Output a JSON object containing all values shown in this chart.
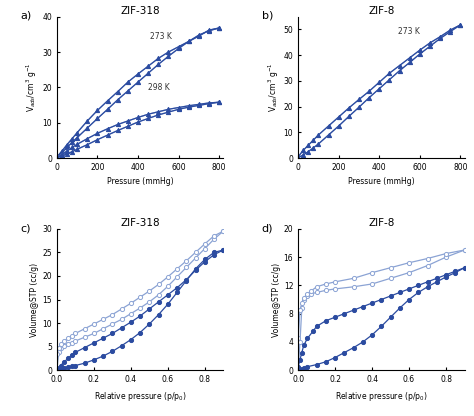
{
  "panel_a": {
    "title": "ZIF-318",
    "xlabel": "Pressure (mmHg)",
    "ylabel": "V$_{ads}$/cm$^3$ g$^{-1}$",
    "xlim": [
      0,
      820
    ],
    "ylim": [
      0,
      40
    ],
    "label_273": "273 K",
    "label_298": "298 K",
    "color_dark": "#2b4ba0",
    "color_light": "#8ba3d4",
    "273_adsorb_x": [
      0,
      25,
      50,
      75,
      100,
      150,
      200,
      250,
      300,
      350,
      400,
      450,
      500,
      550,
      600,
      650,
      700,
      750,
      800
    ],
    "273_adsorb_y": [
      0.3,
      1.5,
      3.0,
      4.5,
      5.8,
      8.5,
      11.2,
      13.8,
      16.5,
      19.0,
      21.5,
      24.0,
      26.5,
      28.8,
      31.0,
      33.0,
      34.8,
      36.0,
      36.8
    ],
    "273_desorb_x": [
      800,
      750,
      700,
      650,
      600,
      550,
      500,
      450,
      400,
      350,
      300,
      250,
      200,
      150,
      100,
      75,
      50,
      25,
      0
    ],
    "273_desorb_y": [
      36.8,
      36.2,
      34.5,
      33.0,
      31.5,
      30.0,
      28.2,
      26.0,
      23.8,
      21.5,
      18.8,
      16.2,
      13.5,
      10.5,
      7.2,
      5.5,
      3.8,
      2.0,
      0.3
    ],
    "298_adsorb_x": [
      0,
      25,
      50,
      75,
      100,
      150,
      200,
      250,
      300,
      350,
      400,
      450,
      500,
      550,
      600,
      650,
      700,
      750,
      800
    ],
    "298_adsorb_y": [
      0.1,
      0.6,
      1.2,
      1.8,
      2.5,
      3.8,
      5.2,
      6.5,
      7.8,
      9.0,
      10.2,
      11.2,
      12.2,
      13.0,
      13.8,
      14.4,
      14.9,
      15.4,
      15.8
    ],
    "298_desorb_x": [
      800,
      750,
      700,
      650,
      600,
      550,
      500,
      450,
      400,
      350,
      300,
      250,
      200,
      150,
      100,
      75,
      50,
      25,
      0
    ],
    "298_desorb_y": [
      15.8,
      15.6,
      15.2,
      14.8,
      14.3,
      13.8,
      13.1,
      12.4,
      11.5,
      10.5,
      9.5,
      8.3,
      7.0,
      5.5,
      3.9,
      3.0,
      2.0,
      1.0,
      0.2
    ]
  },
  "panel_b": {
    "title": "ZIF-8",
    "xlabel": "Pressure (mmHg)",
    "ylabel": "V$_{ads}$/cm$^3$ g$^{-1}$",
    "xlim": [
      0,
      820
    ],
    "ylim": [
      0,
      55
    ],
    "label_273": "273 K",
    "color_dark": "#2b4ba0",
    "color_light": "#8ba3d4",
    "273_adsorb_x": [
      0,
      25,
      50,
      75,
      100,
      150,
      200,
      250,
      300,
      350,
      400,
      450,
      500,
      550,
      600,
      650,
      700,
      750,
      800
    ],
    "273_adsorb_y": [
      0.2,
      1.2,
      2.5,
      4.0,
      5.5,
      9.0,
      12.5,
      16.2,
      19.8,
      23.5,
      27.0,
      30.5,
      34.0,
      37.2,
      40.5,
      43.5,
      46.5,
      49.2,
      51.8
    ],
    "273_desorb_x": [
      800,
      750,
      700,
      650,
      600,
      550,
      500,
      450,
      400,
      350,
      300,
      250,
      200,
      150,
      100,
      75,
      50,
      25,
      0
    ],
    "273_desorb_y": [
      51.8,
      49.8,
      47.2,
      44.8,
      42.0,
      39.0,
      36.0,
      33.0,
      29.5,
      26.0,
      22.8,
      19.5,
      16.0,
      12.5,
      9.0,
      7.0,
      5.0,
      3.0,
      0.5
    ]
  },
  "panel_c": {
    "title": "ZIF-318",
    "xlabel": "Relative pressure (p/p$_0$)",
    "ylabel": "Volume@STP (cc/g)",
    "xlim": [
      0.0,
      0.9
    ],
    "ylim": [
      0,
      30
    ],
    "color_dark": "#2b4ba0",
    "color_light": "#8ba3d4",
    "light_adsorb_x": [
      0.0,
      0.01,
      0.02,
      0.04,
      0.06,
      0.08,
      0.1,
      0.15,
      0.2,
      0.25,
      0.3,
      0.35,
      0.4,
      0.45,
      0.5,
      0.55,
      0.6,
      0.65,
      0.7,
      0.75,
      0.8,
      0.85,
      0.9
    ],
    "light_adsorb_y": [
      0.0,
      3.8,
      4.8,
      5.2,
      5.5,
      5.8,
      6.2,
      7.0,
      7.8,
      8.8,
      9.8,
      10.8,
      12.0,
      13.2,
      14.5,
      16.0,
      17.8,
      19.8,
      21.8,
      23.8,
      25.8,
      27.8,
      29.5
    ],
    "light_desorb_x": [
      0.9,
      0.85,
      0.8,
      0.75,
      0.7,
      0.65,
      0.6,
      0.55,
      0.5,
      0.45,
      0.4,
      0.35,
      0.3,
      0.25,
      0.2,
      0.15,
      0.1,
      0.08,
      0.06,
      0.04,
      0.02,
      0.01,
      0.0
    ],
    "light_desorb_y": [
      29.5,
      28.5,
      26.8,
      25.0,
      23.2,
      21.5,
      19.8,
      18.2,
      16.8,
      15.5,
      14.2,
      13.0,
      11.8,
      10.8,
      9.8,
      8.8,
      7.8,
      7.2,
      6.8,
      6.2,
      5.5,
      4.8,
      3.5
    ],
    "dark_adsorb_x": [
      0.0,
      0.01,
      0.02,
      0.04,
      0.06,
      0.08,
      0.1,
      0.15,
      0.2,
      0.25,
      0.3,
      0.35,
      0.4,
      0.45,
      0.5,
      0.55,
      0.6,
      0.65,
      0.7,
      0.75,
      0.8,
      0.85,
      0.9
    ],
    "dark_adsorb_y": [
      0.0,
      0.1,
      0.2,
      0.4,
      0.6,
      0.8,
      1.0,
      1.5,
      2.2,
      3.0,
      4.0,
      5.2,
      6.5,
      8.0,
      9.8,
      11.8,
      14.0,
      16.5,
      19.0,
      21.5,
      23.5,
      25.0,
      25.5
    ],
    "dark_desorb_x": [
      0.9,
      0.85,
      0.8,
      0.75,
      0.7,
      0.65,
      0.6,
      0.55,
      0.5,
      0.45,
      0.4,
      0.35,
      0.3,
      0.25,
      0.2,
      0.15,
      0.1,
      0.08,
      0.06,
      0.04,
      0.02,
      0.01,
      0.0
    ],
    "dark_desorb_y": [
      25.5,
      24.5,
      23.0,
      21.2,
      19.2,
      17.5,
      16.0,
      14.5,
      13.0,
      11.5,
      10.2,
      9.0,
      7.8,
      6.8,
      5.8,
      4.8,
      3.8,
      3.2,
      2.5,
      1.8,
      1.0,
      0.5,
      0.1
    ]
  },
  "panel_d": {
    "title": "ZIF-8",
    "xlabel": "Relative pressure (p/p$_0$)",
    "ylabel": "Volume@STP (cc/g)",
    "xlim": [
      0.0,
      0.9
    ],
    "ylim": [
      0,
      20
    ],
    "color_dark": "#2b4ba0",
    "color_light": "#8ba3d4",
    "light_adsorb_x": [
      0.0,
      0.01,
      0.02,
      0.03,
      0.05,
      0.07,
      0.1,
      0.15,
      0.2,
      0.3,
      0.4,
      0.5,
      0.6,
      0.7,
      0.8,
      0.9
    ],
    "light_adsorb_y": [
      0.0,
      4.0,
      8.8,
      10.0,
      10.5,
      10.8,
      11.0,
      11.3,
      11.5,
      11.8,
      12.2,
      13.0,
      13.8,
      14.8,
      16.0,
      17.0
    ],
    "light_desorb_x": [
      0.9,
      0.8,
      0.7,
      0.6,
      0.5,
      0.4,
      0.3,
      0.2,
      0.15,
      0.1,
      0.07,
      0.05,
      0.03,
      0.02,
      0.01,
      0.0
    ],
    "light_desorb_y": [
      17.0,
      16.5,
      15.8,
      15.2,
      14.5,
      13.8,
      13.0,
      12.5,
      12.2,
      11.8,
      11.2,
      10.8,
      10.2,
      9.5,
      8.5,
      4.5
    ],
    "dark_adsorb_x": [
      0.0,
      0.01,
      0.02,
      0.03,
      0.05,
      0.1,
      0.15,
      0.2,
      0.25,
      0.3,
      0.35,
      0.4,
      0.45,
      0.5,
      0.55,
      0.6,
      0.65,
      0.7,
      0.75,
      0.8,
      0.85,
      0.9
    ],
    "dark_adsorb_y": [
      0.0,
      0.1,
      0.2,
      0.3,
      0.5,
      0.8,
      1.2,
      1.8,
      2.5,
      3.2,
      4.0,
      5.0,
      6.2,
      7.5,
      8.8,
      10.0,
      11.0,
      11.8,
      12.5,
      13.2,
      13.8,
      14.5
    ],
    "dark_desorb_x": [
      0.9,
      0.85,
      0.8,
      0.75,
      0.7,
      0.65,
      0.6,
      0.55,
      0.5,
      0.45,
      0.4,
      0.35,
      0.3,
      0.25,
      0.2,
      0.15,
      0.1,
      0.08,
      0.05,
      0.03,
      0.02,
      0.01,
      0.0
    ],
    "dark_desorb_y": [
      14.5,
      14.0,
      13.5,
      13.0,
      12.5,
      12.0,
      11.5,
      11.0,
      10.5,
      10.0,
      9.5,
      9.0,
      8.5,
      8.0,
      7.5,
      7.0,
      6.2,
      5.5,
      4.5,
      3.5,
      2.5,
      1.5,
      0.5
    ]
  },
  "background_color": "#ffffff"
}
